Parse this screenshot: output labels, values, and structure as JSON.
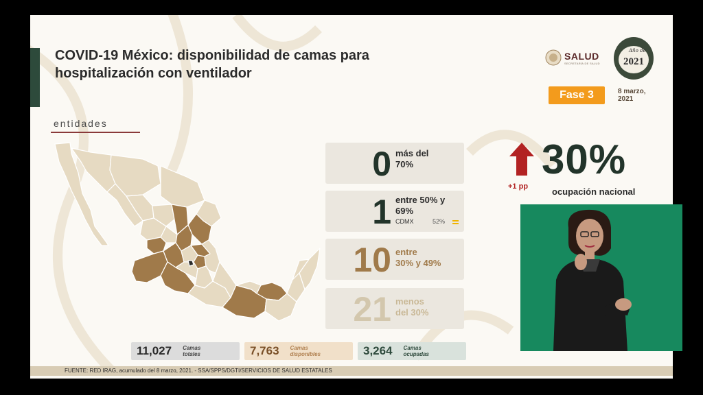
{
  "title": "COVID-19 México: disponibilidad de camas para hospitalización con ventilador",
  "logos": {
    "salud": "SALUD",
    "salud_sub": "SECRETARÍA DE SALUD",
    "year_top": "Año de",
    "year": "2021"
  },
  "phase": {
    "label": "Fase 3",
    "date_line1": "8 marzo,",
    "date_line2": "2021"
  },
  "section_label": "entidades",
  "stat_cards": [
    {
      "number": "0",
      "desc_line1": "más del",
      "desc_line2": "70%"
    },
    {
      "number": "1",
      "desc_line1": "entre 50% y",
      "desc_line2": "69%",
      "state": "CDMX",
      "state_pct": "52%",
      "state_icon": "equal-icon"
    },
    {
      "number": "10",
      "desc_line1": "entre",
      "desc_line2": "30% y 49%"
    },
    {
      "number": "21",
      "desc_line1": "menos",
      "desc_line2": "del 30%"
    }
  ],
  "summary": {
    "totales": {
      "value": "11,027",
      "label_line1": "Camas",
      "label_line2": "totales"
    },
    "disponibles": {
      "value": "7,763",
      "label_line1": "Camas",
      "label_line2": "disponibles"
    },
    "ocupadas": {
      "value": "3,264",
      "label_line1": "Camas",
      "label_line2": "ocupadas"
    }
  },
  "national": {
    "change": "+1 pp",
    "value": "30%",
    "label": "ocupación nacional",
    "trend_icon": "arrow-up-icon"
  },
  "footer": "FUENTE: RED IRAG, acumulado del 8 marzo, 2021. -  SSA/SPPS/DGTI/SERVICIOS DE SALUD ESTATALES",
  "colors": {
    "dark_green": "#22342a",
    "brown": "#a07a4a",
    "light_tan": "#d3c7ad",
    "orange": "#f39b1c",
    "red": "#b22222",
    "interpreter_bg": "#17895e"
  }
}
